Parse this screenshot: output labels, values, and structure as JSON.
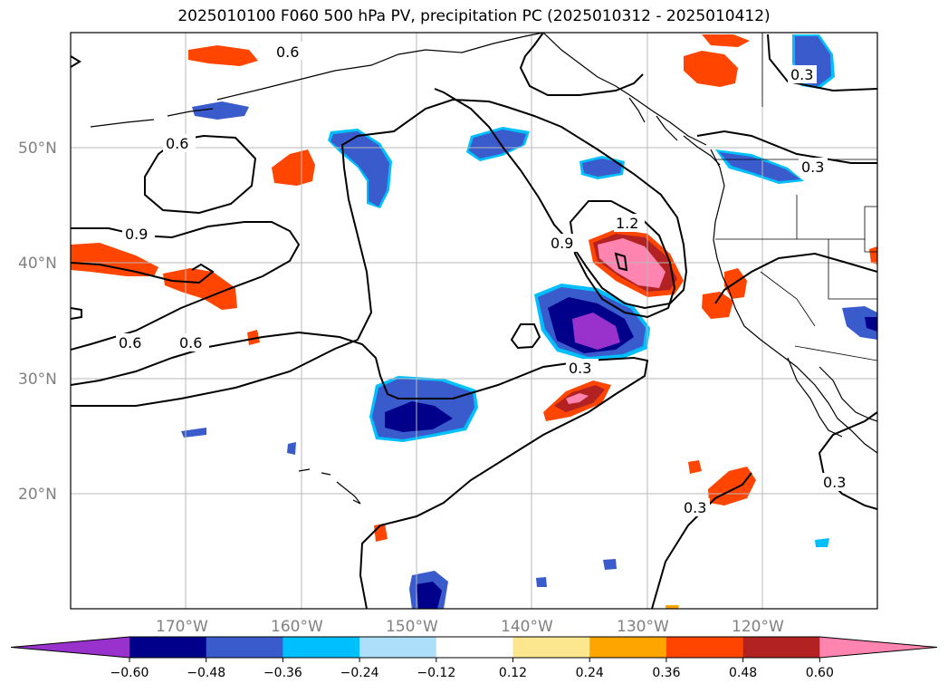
{
  "title": "2025010100 F060 500 hPa PV, precipitation PC (2025010312 - 2025010412)",
  "map": {
    "lon_labels": [
      "170°W",
      "160°W",
      "150°W",
      "140°W",
      "130°W",
      "120°W"
    ],
    "lat_labels": [
      "50°N",
      "40°N",
      "30°N",
      "20°N"
    ],
    "contour_labels": [
      "0.6",
      "0.6",
      "0.9",
      "0.6",
      "0.6",
      "0.9",
      "1.2",
      "0.3",
      "0.3",
      "0.3",
      "0.3",
      "0.3"
    ]
  },
  "colorbar": {
    "colors": [
      "#9932CC",
      "#00008B",
      "#3A5BCC",
      "#00BFFF",
      "#ADDFFA",
      "#FFFFFF",
      "#FCE78F",
      "#FFA500",
      "#FF4500",
      "#B22222",
      "#FF85B0"
    ],
    "tick_labels": [
      "−0.60",
      "−0.48",
      "−0.36",
      "−0.24",
      "−0.12",
      "0.12",
      "0.24",
      "0.36",
      "0.48",
      "0.60"
    ]
  }
}
